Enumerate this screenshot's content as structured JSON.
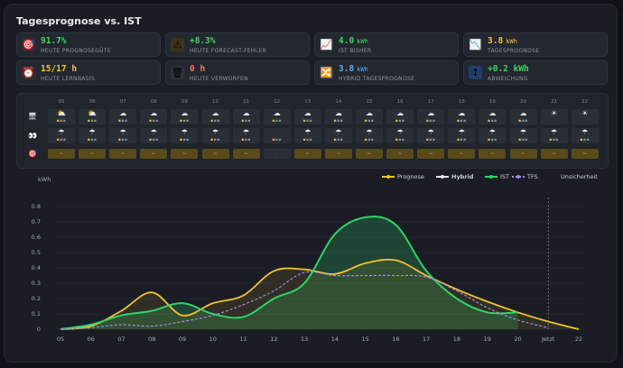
{
  "title": "Tagesprognose vs. IST",
  "tiles": [
    {
      "value": "91.7%",
      "unit": "",
      "label": "HEUTE PROGNOSEGÜTE",
      "color": "#3ed65f",
      "icon": "target-icon",
      "glyph": "🎯",
      "bg": "#3a2a3a"
    },
    {
      "value": "+8.3%",
      "unit": "",
      "label": "HEUTE FORECAST-FEHLER",
      "color": "#3ed65f",
      "icon": "warning-icon",
      "glyph": "⚠",
      "bg": "#3a3418"
    },
    {
      "value": "4.0",
      "unit": "kWh",
      "label": "IST BISHER",
      "color": "#3ed65f",
      "icon": "chart-up-icon",
      "glyph": "📈",
      "bg": "#2a2f3a"
    },
    {
      "value": "3.8",
      "unit": "kWh",
      "label": "TAGESPROGNOSE",
      "color": "#f2c230",
      "icon": "chart-down-icon",
      "glyph": "📉",
      "bg": "#3a2a32"
    },
    {
      "value": "15/17 h",
      "unit": "",
      "label": "HEUTE LERNBASIS",
      "color": "#f2c230",
      "icon": "alarm-clock-icon",
      "glyph": "⏰",
      "bg": "#3a2a2a"
    },
    {
      "value": "0 h",
      "unit": "",
      "label": "HEUTE VERWORFEN",
      "color": "#ff6b5a",
      "icon": "trash-icon",
      "glyph": "🗑",
      "bg": "#2e3238"
    },
    {
      "value": "3.8",
      "unit": "kWh",
      "label": "HYBRID TAGESPROGNOSE",
      "color": "#5aa9f0",
      "icon": "shuffle-icon",
      "glyph": "🔀",
      "bg": "#1f3e6a"
    },
    {
      "value": "+0.2 kWh",
      "unit": "",
      "label": "ABWEICHUNG",
      "color": "#3ed65f",
      "icon": "up-down-arrow-icon",
      "glyph": "↕",
      "bg": "#1f3e6a"
    }
  ],
  "hours": [
    "05",
    "06",
    "07",
    "08",
    "09",
    "10",
    "11",
    "12",
    "13",
    "14",
    "15",
    "16",
    "17",
    "18",
    "19",
    "20",
    "21",
    "22"
  ],
  "row1": [
    {
      "g": "⛅",
      "s": "▪▪▪"
    },
    {
      "g": "⛅",
      "s": "▪▪▪"
    },
    {
      "g": "☁",
      "s": "▪▪▪"
    },
    {
      "g": "☁",
      "s": "▪▪▪"
    },
    {
      "g": "☁",
      "s": "▪▪▪"
    },
    {
      "g": "☁",
      "s": "▪▪▪"
    },
    {
      "g": "☁",
      "s": "▪▪▪"
    },
    {
      "g": "☁",
      "s": "▪▪▪"
    },
    {
      "g": "☁",
      "s": "▪▪▪"
    },
    {
      "g": "☁",
      "s": "▪▪▪"
    },
    {
      "g": "☁",
      "s": "▪▪▪"
    },
    {
      "g": "☁",
      "s": "▪▪▪"
    },
    {
      "g": "☁",
      "s": "▪▪▪"
    },
    {
      "g": "☁",
      "s": "▪▪▪"
    },
    {
      "g": "☁",
      "s": "▪▪▪"
    },
    {
      "g": "☁",
      "s": "▪▪▪"
    },
    {
      "g": "☀",
      "s": ""
    },
    {
      "g": "☀",
      "s": ""
    }
  ],
  "row2": [
    {
      "g": "☂",
      "s": "▪▪▪"
    },
    {
      "g": "☂",
      "s": "▪▪▪"
    },
    {
      "g": "☂",
      "s": "▪▪▪"
    },
    {
      "g": "☂",
      "s": "▪▪▪"
    },
    {
      "g": "☂",
      "s": "▪▪▪"
    },
    {
      "g": "☂",
      "s": "▪▪▪"
    },
    {
      "g": "☂",
      "s": "▪▪▪"
    },
    {
      "g": "",
      "s": "▪▪▪"
    },
    {
      "g": "☂",
      "s": "▪▪▪"
    },
    {
      "g": "☂",
      "s": "▪▪▪"
    },
    {
      "g": "☂",
      "s": "▪▪▪"
    },
    {
      "g": "☂",
      "s": "▪▪▪"
    },
    {
      "g": "☂",
      "s": "▪▪▪"
    },
    {
      "g": "☂",
      "s": "▪▪▪"
    },
    {
      "g": "☂",
      "s": "▪▪▪"
    },
    {
      "g": "☂",
      "s": "▪▪▪"
    },
    {
      "g": "☂",
      "s": "▪▪▪"
    },
    {
      "g": "☂",
      "s": "▪▪▪"
    }
  ],
  "row3": [
    "~",
    "~",
    "~",
    "~",
    "~",
    "~",
    "~",
    "-",
    "~",
    "~",
    "~",
    "~",
    "~",
    "~",
    "~",
    "~",
    "~",
    "~"
  ],
  "row3_dim": [
    false,
    false,
    false,
    false,
    false,
    false,
    false,
    true,
    false,
    false,
    false,
    false,
    false,
    false,
    false,
    false,
    false,
    false
  ],
  "legend": [
    {
      "label": "Prognose",
      "color": "#f2c230",
      "style": "solid"
    },
    {
      "label": "Hybrid",
      "color": "#e6e9ee",
      "style": "solid"
    },
    {
      "label": "IST",
      "color": "#2fd36a",
      "style": "solid"
    },
    {
      "label": "TFS",
      "color": "#9a8ae6",
      "style": "dashed"
    },
    {
      "label": "Unsicherheit",
      "color": "",
      "style": "none"
    }
  ],
  "chart_data": {
    "type": "line",
    "ylabel": "kWh",
    "ylim": [
      0,
      0.8
    ],
    "yticks": [
      "0",
      "0.1",
      "0.2",
      "0.3",
      "0.4",
      "0.5",
      "0.6",
      "0.7",
      "0.8"
    ],
    "x": [
      "05",
      "06",
      "07",
      "08",
      "09",
      "10",
      "11",
      "12",
      "13",
      "14",
      "15",
      "16",
      "17",
      "18",
      "19",
      "20",
      "Jetzt",
      "22"
    ],
    "now_label": "Jetzt",
    "now_x": 21,
    "series": [
      {
        "name": "Prognose",
        "color": "#f2c230",
        "x": [
          5,
          6,
          7,
          8,
          9,
          10,
          11,
          12,
          13,
          14,
          15,
          16,
          17,
          18,
          19,
          20,
          21,
          22
        ],
        "values": [
          0.0,
          0.02,
          0.12,
          0.24,
          0.09,
          0.17,
          0.22,
          0.38,
          0.39,
          0.36,
          0.43,
          0.45,
          0.35,
          0.26,
          0.18,
          0.11,
          0.05,
          0.0
        ]
      },
      {
        "name": "IST",
        "color": "#2fd36a",
        "x": [
          5,
          6,
          7,
          8,
          9,
          10,
          11,
          12,
          13,
          14,
          15,
          16,
          17,
          18,
          19,
          20
        ],
        "values": [
          0.0,
          0.03,
          0.09,
          0.12,
          0.17,
          0.1,
          0.08,
          0.2,
          0.3,
          0.62,
          0.73,
          0.68,
          0.38,
          0.2,
          0.11,
          0.11
        ]
      },
      {
        "name": "TFS",
        "color": "#9a8ae6",
        "x": [
          5,
          6,
          7,
          8,
          9,
          10,
          11,
          12,
          13,
          14,
          15,
          16,
          17,
          18,
          19,
          20,
          21
        ],
        "values": [
          0.0,
          0.01,
          0.03,
          0.02,
          0.05,
          0.09,
          0.16,
          0.25,
          0.37,
          0.35,
          0.35,
          0.35,
          0.34,
          0.25,
          0.14,
          0.06,
          0.01
        ]
      }
    ]
  }
}
